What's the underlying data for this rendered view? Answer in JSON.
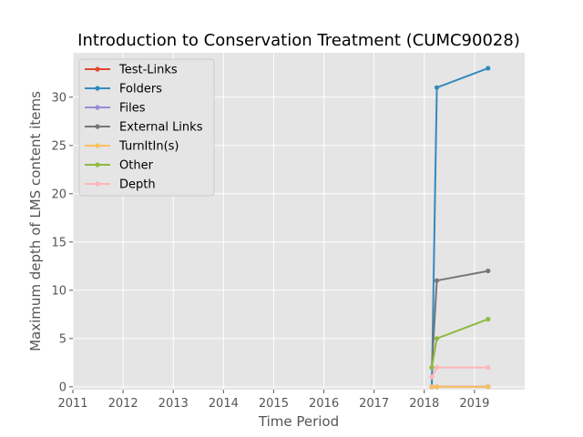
{
  "chart_data": {
    "type": "line",
    "title": "Introduction to Conservation Treatment (CUMC90028)",
    "xlabel": "Time Period",
    "ylabel": "Maximum depth of LMS content items",
    "xlim": [
      2011,
      2020
    ],
    "ylim": [
      -0.3,
      34.6
    ],
    "xticks": [
      2011,
      2012,
      2013,
      2014,
      2015,
      2016,
      2017,
      2018,
      2019
    ],
    "yticks": [
      0,
      5,
      10,
      15,
      20,
      25,
      30
    ],
    "grid": true,
    "legend_position": "top-left",
    "x": [
      2018.15,
      2018.25,
      2019.27
    ],
    "series": [
      {
        "name": "Test-Links",
        "color": "#E24A33",
        "values": [
          0,
          0,
          0
        ]
      },
      {
        "name": "Folders",
        "color": "#348ABD",
        "values": [
          0,
          31,
          33
        ]
      },
      {
        "name": "Files",
        "color": "#988ED5",
        "values": [
          0,
          0,
          0
        ]
      },
      {
        "name": "External Links",
        "color": "#777777",
        "values": [
          2,
          11,
          12
        ]
      },
      {
        "name": "TurnItIn(s)",
        "color": "#FBC15E",
        "values": [
          0,
          0,
          0
        ]
      },
      {
        "name": "Other",
        "color": "#8EBA42",
        "values": [
          2,
          5,
          7
        ]
      },
      {
        "name": "Depth",
        "color": "#FFB5B8",
        "values": [
          1,
          2,
          2
        ]
      }
    ]
  }
}
